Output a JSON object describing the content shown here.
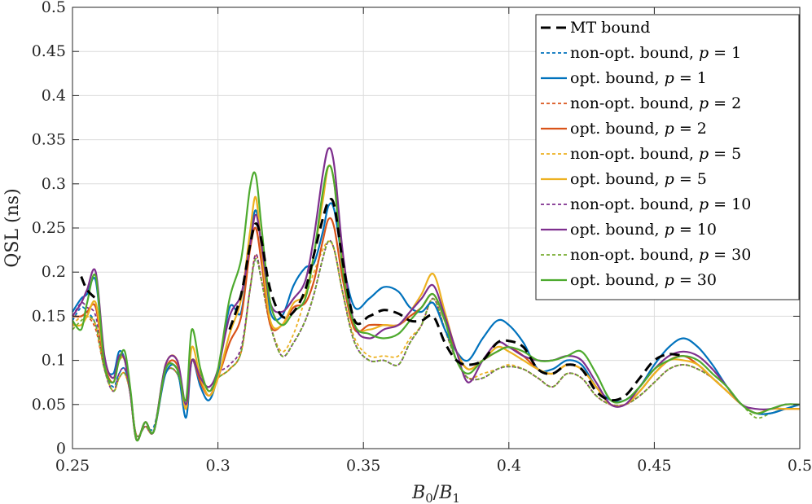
{
  "chart_data": {
    "type": "line",
    "title": "",
    "xlabel": "B_0/B_1",
    "xlabel_main": "B",
    "xlabel_sub1": "0",
    "xlabel_slash": "/",
    "xlabel_main2": "B",
    "xlabel_sub2": "1",
    "ylabel": "QSL (ns)",
    "xlim": [
      0.25,
      0.5
    ],
    "ylim": [
      0,
      0.5
    ],
    "xticks": [
      0.25,
      0.3,
      0.35,
      0.4,
      0.45,
      0.5
    ],
    "xtick_labels": [
      "0.25",
      "0.3",
      "0.35",
      "0.4",
      "0.45",
      "0.5"
    ],
    "yticks": [
      0,
      0.05,
      0.1,
      0.15,
      0.2,
      0.25,
      0.3,
      0.35,
      0.4,
      0.45,
      0.5
    ],
    "ytick_labels": [
      "0",
      "0.05",
      "0.1",
      "0.15",
      "0.2",
      "0.25",
      "0.3",
      "0.35",
      "0.4",
      "0.45",
      "0.5"
    ],
    "grid": true,
    "legend_position": "top-right",
    "x": [
      0.25,
      0.253,
      0.255,
      0.258,
      0.261,
      0.264,
      0.266,
      0.268,
      0.27,
      0.272,
      0.275,
      0.278,
      0.282,
      0.286,
      0.289,
      0.291,
      0.294,
      0.297,
      0.3,
      0.304,
      0.308,
      0.311,
      0.313,
      0.315,
      0.318,
      0.322,
      0.326,
      0.33,
      0.333,
      0.336,
      0.338,
      0.34,
      0.343,
      0.347,
      0.352,
      0.357,
      0.362,
      0.366,
      0.37,
      0.374,
      0.378,
      0.382,
      0.386,
      0.391,
      0.396,
      0.4,
      0.405,
      0.41,
      0.415,
      0.42,
      0.425,
      0.43,
      0.435,
      0.44,
      0.445,
      0.45,
      0.455,
      0.46,
      0.465,
      0.47,
      0.475,
      0.48,
      0.485,
      0.49,
      0.495,
      0.5
    ],
    "series": [
      {
        "name": "MT bound",
        "color": "#000000",
        "dash": "long",
        "width": 3,
        "values": [
          null,
          0.195,
          0.18,
          0.17,
          null,
          null,
          null,
          null,
          null,
          null,
          null,
          null,
          null,
          null,
          null,
          null,
          null,
          null,
          null,
          0.135,
          0.175,
          0.23,
          0.255,
          0.235,
          0.18,
          0.15,
          0.155,
          0.18,
          0.22,
          0.26,
          0.28,
          0.275,
          0.21,
          0.145,
          0.15,
          0.157,
          0.153,
          0.145,
          0.145,
          0.15,
          0.12,
          0.1,
          0.095,
          0.1,
          0.12,
          0.122,
          0.115,
          0.09,
          0.085,
          0.095,
          0.09,
          0.065,
          0.055,
          0.06,
          0.08,
          0.1,
          0.107,
          0.105,
          null,
          null,
          null,
          null,
          null,
          null,
          null,
          null
        ]
      },
      {
        "name": "non-opt. bound, ",
        "pname": "p",
        "eq": " = 1",
        "color": "#0072BD",
        "dash": "short",
        "width": 1.8,
        "values": [
          0.145,
          0.16,
          0.155,
          0.14,
          0.09,
          0.07,
          0.085,
          0.09,
          0.06,
          0.015,
          0.025,
          0.025,
          0.085,
          0.085,
          0.05,
          0.1,
          0.085,
          0.065,
          0.08,
          0.09,
          0.11,
          0.18,
          0.215,
          0.19,
          0.14,
          0.105,
          0.12,
          0.145,
          0.175,
          0.215,
          0.235,
          0.225,
          0.175,
          0.12,
          0.1,
          0.1,
          0.095,
          0.12,
          0.14,
          0.17,
          0.135,
          0.1,
          0.08,
          0.08,
          0.09,
          0.093,
          0.09,
          0.08,
          0.07,
          0.085,
          0.08,
          0.06,
          0.05,
          0.05,
          0.06,
          0.075,
          0.09,
          0.095,
          0.09,
          0.08,
          0.065,
          0.05,
          0.04,
          0.04,
          0.045,
          0.045
        ]
      },
      {
        "name": "opt. bound, ",
        "pname": "p",
        "eq": " = 1",
        "color": "#0072BD",
        "dash": "solid",
        "width": 2.2,
        "values": [
          0.155,
          0.17,
          0.175,
          0.19,
          0.1,
          0.085,
          0.11,
          0.1,
          0.06,
          0.01,
          0.03,
          0.02,
          0.085,
          0.09,
          0.035,
          0.1,
          0.07,
          0.055,
          0.085,
          0.16,
          0.155,
          0.235,
          0.27,
          0.23,
          0.155,
          0.15,
          0.185,
          0.205,
          0.21,
          0.245,
          0.275,
          0.27,
          0.21,
          0.16,
          0.17,
          0.183,
          0.178,
          0.16,
          0.155,
          0.165,
          0.135,
          0.11,
          0.1,
          0.125,
          0.145,
          0.14,
          0.12,
          0.09,
          0.09,
          0.1,
          0.095,
          0.07,
          0.055,
          0.055,
          0.07,
          0.095,
          0.115,
          0.125,
          0.115,
          0.095,
          0.07,
          0.05,
          0.04,
          0.04,
          0.045,
          0.05
        ]
      },
      {
        "name": "non-opt. bound, ",
        "pname": "p",
        "eq": " = 2",
        "color": "#D95319",
        "dash": "short",
        "width": 1.8,
        "values": [
          0.14,
          0.15,
          0.15,
          0.135,
          0.09,
          0.065,
          0.08,
          0.085,
          0.06,
          0.015,
          0.025,
          0.02,
          0.085,
          0.085,
          0.05,
          0.1,
          0.085,
          0.065,
          0.08,
          0.09,
          0.11,
          0.18,
          0.22,
          0.19,
          0.14,
          0.105,
          0.12,
          0.145,
          0.175,
          0.215,
          0.235,
          0.225,
          0.175,
          0.12,
          0.1,
          0.1,
          0.095,
          0.12,
          0.14,
          0.17,
          0.135,
          0.1,
          0.08,
          0.08,
          0.09,
          0.093,
          0.09,
          0.08,
          0.07,
          0.085,
          0.08,
          0.06,
          0.05,
          0.05,
          0.06,
          0.075,
          0.09,
          0.095,
          0.09,
          0.08,
          0.065,
          0.05,
          0.04,
          0.04,
          0.045,
          0.045
        ]
      },
      {
        "name": "opt. bound, ",
        "pname": "p",
        "eq": " = 2",
        "color": "#D95319",
        "dash": "solid",
        "width": 2.2,
        "values": [
          0.15,
          0.15,
          0.155,
          0.16,
          0.095,
          0.075,
          0.1,
          0.1,
          0.06,
          0.01,
          0.03,
          0.02,
          0.09,
          0.095,
          0.045,
          0.1,
          0.075,
          0.06,
          0.08,
          0.12,
          0.15,
          0.225,
          0.25,
          0.21,
          0.14,
          0.14,
          0.16,
          0.165,
          0.19,
          0.235,
          0.26,
          0.25,
          0.19,
          0.135,
          0.14,
          0.14,
          0.14,
          0.15,
          0.16,
          0.175,
          0.145,
          0.11,
          0.09,
          0.1,
          0.11,
          0.115,
          0.105,
          0.09,
          0.085,
          0.095,
          0.09,
          0.07,
          0.05,
          0.05,
          0.065,
          0.085,
          0.1,
          0.105,
          0.095,
          0.08,
          0.065,
          0.05,
          0.04,
          0.045,
          0.045,
          0.045
        ]
      },
      {
        "name": "non-opt. bound, ",
        "pname": "p",
        "eq": " = 5",
        "color": "#EDB120",
        "dash": "short",
        "width": 1.8,
        "values": [
          0.14,
          0.15,
          0.15,
          0.14,
          0.09,
          0.065,
          0.08,
          0.085,
          0.06,
          0.015,
          0.025,
          0.02,
          0.085,
          0.085,
          0.05,
          0.1,
          0.085,
          0.065,
          0.08,
          0.09,
          0.11,
          0.18,
          0.22,
          0.19,
          0.14,
          0.11,
          0.13,
          0.17,
          0.2,
          0.225,
          0.235,
          0.225,
          0.175,
          0.125,
          0.105,
          0.105,
          0.105,
          0.125,
          0.14,
          0.17,
          0.135,
          0.1,
          0.08,
          0.085,
          0.09,
          0.095,
          0.09,
          0.08,
          0.07,
          0.085,
          0.08,
          0.06,
          0.05,
          0.05,
          0.06,
          0.075,
          0.09,
          0.095,
          0.09,
          0.08,
          0.065,
          0.05,
          0.04,
          0.04,
          0.045,
          0.045
        ]
      },
      {
        "name": "opt. bound, ",
        "pname": "p",
        "eq": " = 5",
        "color": "#EDB120",
        "dash": "solid",
        "width": 2.2,
        "values": [
          0.14,
          0.14,
          0.15,
          0.165,
          0.1,
          0.08,
          0.1,
          0.1,
          0.06,
          0.01,
          0.03,
          0.02,
          0.095,
          0.1,
          0.045,
          0.115,
          0.08,
          0.06,
          0.08,
          0.13,
          0.17,
          0.245,
          0.285,
          0.225,
          0.145,
          0.14,
          0.165,
          0.175,
          0.22,
          0.28,
          0.32,
          0.3,
          0.21,
          0.14,
          0.135,
          0.14,
          0.14,
          0.155,
          0.175,
          0.198,
          0.155,
          0.11,
          0.09,
          0.1,
          0.115,
          0.11,
          0.1,
          0.09,
          0.085,
          0.095,
          0.09,
          0.07,
          0.05,
          0.05,
          0.065,
          0.085,
          0.1,
          0.1,
          0.095,
          0.08,
          0.065,
          0.05,
          0.04,
          0.045,
          0.045,
          0.045
        ]
      },
      {
        "name": "non-opt. bound, ",
        "pname": "p",
        "eq": " = 10",
        "color": "#7E2F8E",
        "dash": "short",
        "width": 1.8,
        "values": [
          0.15,
          0.165,
          0.16,
          0.15,
          0.09,
          0.065,
          0.085,
          0.09,
          0.06,
          0.015,
          0.025,
          0.02,
          0.085,
          0.085,
          0.05,
          0.1,
          0.085,
          0.065,
          0.085,
          0.095,
          0.115,
          0.18,
          0.22,
          0.19,
          0.14,
          0.105,
          0.12,
          0.145,
          0.175,
          0.215,
          0.235,
          0.225,
          0.175,
          0.12,
          0.1,
          0.1,
          0.095,
          0.12,
          0.14,
          0.17,
          0.135,
          0.1,
          0.08,
          0.08,
          0.09,
          0.093,
          0.09,
          0.08,
          0.07,
          0.085,
          0.08,
          0.06,
          0.05,
          0.05,
          0.06,
          0.075,
          0.09,
          0.095,
          0.09,
          0.08,
          0.065,
          0.05,
          0.04,
          0.04,
          0.045,
          0.045
        ]
      },
      {
        "name": "opt. bound, ",
        "pname": "p",
        "eq": " = 10",
        "color": "#7E2F8E",
        "dash": "solid",
        "width": 2.2,
        "values": [
          0.15,
          0.165,
          0.18,
          0.2,
          0.105,
          0.08,
          0.105,
          0.1,
          0.06,
          0.01,
          0.03,
          0.02,
          0.095,
          0.1,
          0.05,
          0.1,
          0.08,
          0.07,
          0.09,
          0.15,
          0.175,
          0.23,
          0.265,
          0.23,
          0.165,
          0.155,
          0.17,
          0.19,
          0.24,
          0.31,
          0.34,
          0.32,
          0.22,
          0.14,
          0.125,
          0.135,
          0.14,
          0.155,
          0.17,
          0.185,
          0.15,
          0.11,
          0.075,
          0.1,
          0.12,
          0.115,
          0.105,
          0.1,
          0.1,
          0.105,
          0.1,
          0.075,
          0.05,
          0.05,
          0.07,
          0.09,
          0.105,
          0.11,
          0.105,
          0.09,
          0.07,
          0.05,
          0.045,
          0.045,
          0.05,
          0.05
        ]
      },
      {
        "name": "non-opt. bound, ",
        "pname": "p",
        "eq": " = 30",
        "color": "#77AC30",
        "dash": "short",
        "width": 1.8,
        "values": [
          0.135,
          0.145,
          0.15,
          0.14,
          0.09,
          0.065,
          0.08,
          0.085,
          0.06,
          0.015,
          0.025,
          0.02,
          0.085,
          0.085,
          0.05,
          0.1,
          0.085,
          0.065,
          0.08,
          0.09,
          0.11,
          0.18,
          0.215,
          0.19,
          0.14,
          0.105,
          0.12,
          0.145,
          0.175,
          0.215,
          0.235,
          0.225,
          0.175,
          0.12,
          0.1,
          0.1,
          0.095,
          0.12,
          0.14,
          0.17,
          0.135,
          0.1,
          0.08,
          0.08,
          0.09,
          0.093,
          0.09,
          0.08,
          0.07,
          0.085,
          0.08,
          0.06,
          0.05,
          0.05,
          0.06,
          0.075,
          0.09,
          0.095,
          0.09,
          0.08,
          0.065,
          0.05,
          0.035,
          0.04,
          0.045,
          0.045
        ]
      },
      {
        "name": "opt. bound, ",
        "pname": "p",
        "eq": " = 30",
        "color": "#4DAA2E",
        "dash": "solid",
        "width": 2.2,
        "values": [
          0.145,
          0.135,
          0.165,
          0.195,
          0.095,
          0.075,
          0.1,
          0.11,
          0.065,
          0.01,
          0.03,
          0.02,
          0.09,
          0.09,
          0.055,
          0.135,
          0.09,
          0.065,
          0.09,
          0.17,
          0.215,
          0.295,
          0.31,
          0.25,
          0.165,
          0.14,
          0.155,
          0.17,
          0.22,
          0.29,
          0.32,
          0.3,
          0.2,
          0.14,
          0.13,
          0.125,
          0.13,
          0.145,
          0.16,
          0.175,
          0.145,
          0.1,
          0.085,
          0.1,
          0.11,
          0.115,
          0.11,
          0.1,
          0.1,
          0.105,
          0.11,
          0.085,
          0.055,
          0.055,
          0.07,
          0.09,
          0.1,
          0.105,
          0.1,
          0.085,
          0.07,
          0.05,
          0.04,
          0.045,
          0.05,
          0.05
        ]
      }
    ]
  }
}
